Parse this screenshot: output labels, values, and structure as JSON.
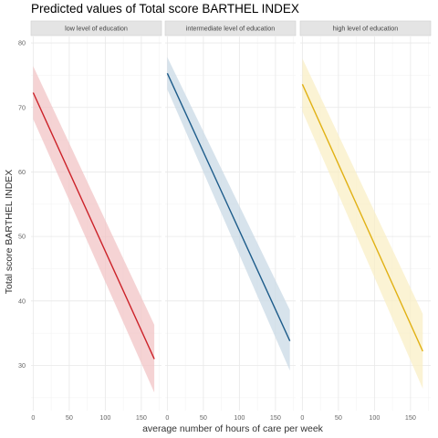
{
  "chart_data": {
    "type": "line",
    "title": "Predicted values of Total score BARTHEL INDEX",
    "xlabel": "average number of hours of care per week",
    "ylabel": "Total score BARTHEL INDEX",
    "xlim": [
      -3,
      178
    ],
    "ylim": [
      23,
      81
    ],
    "x_ticks": [
      0,
      50,
      100,
      150
    ],
    "y_ticks": [
      30,
      40,
      50,
      60,
      70,
      80
    ],
    "grid": true,
    "legend": "none",
    "panels": [
      {
        "label": "low level of education",
        "color": "#cc2229",
        "band_color": "#f2c4c6",
        "x": [
          0,
          168
        ],
        "y": [
          72.3,
          31.0
        ],
        "ci_low": [
          68.2,
          25.8
        ],
        "ci_high": [
          76.4,
          36.3
        ]
      },
      {
        "label": "intermediate level of education",
        "color": "#1d5c8a",
        "band_color": "#c9d9e6",
        "x": [
          0,
          170
        ],
        "y": [
          75.3,
          33.8
        ],
        "ci_low": [
          72.8,
          29.2
        ],
        "ci_high": [
          77.8,
          38.6
        ]
      },
      {
        "label": "high level of education",
        "color": "#e1b114",
        "band_color": "#faefc6",
        "x": [
          0,
          167
        ],
        "y": [
          73.6,
          32.2
        ],
        "ci_low": [
          69.4,
          26.4
        ],
        "ci_high": [
          77.6,
          38.0
        ]
      }
    ]
  }
}
